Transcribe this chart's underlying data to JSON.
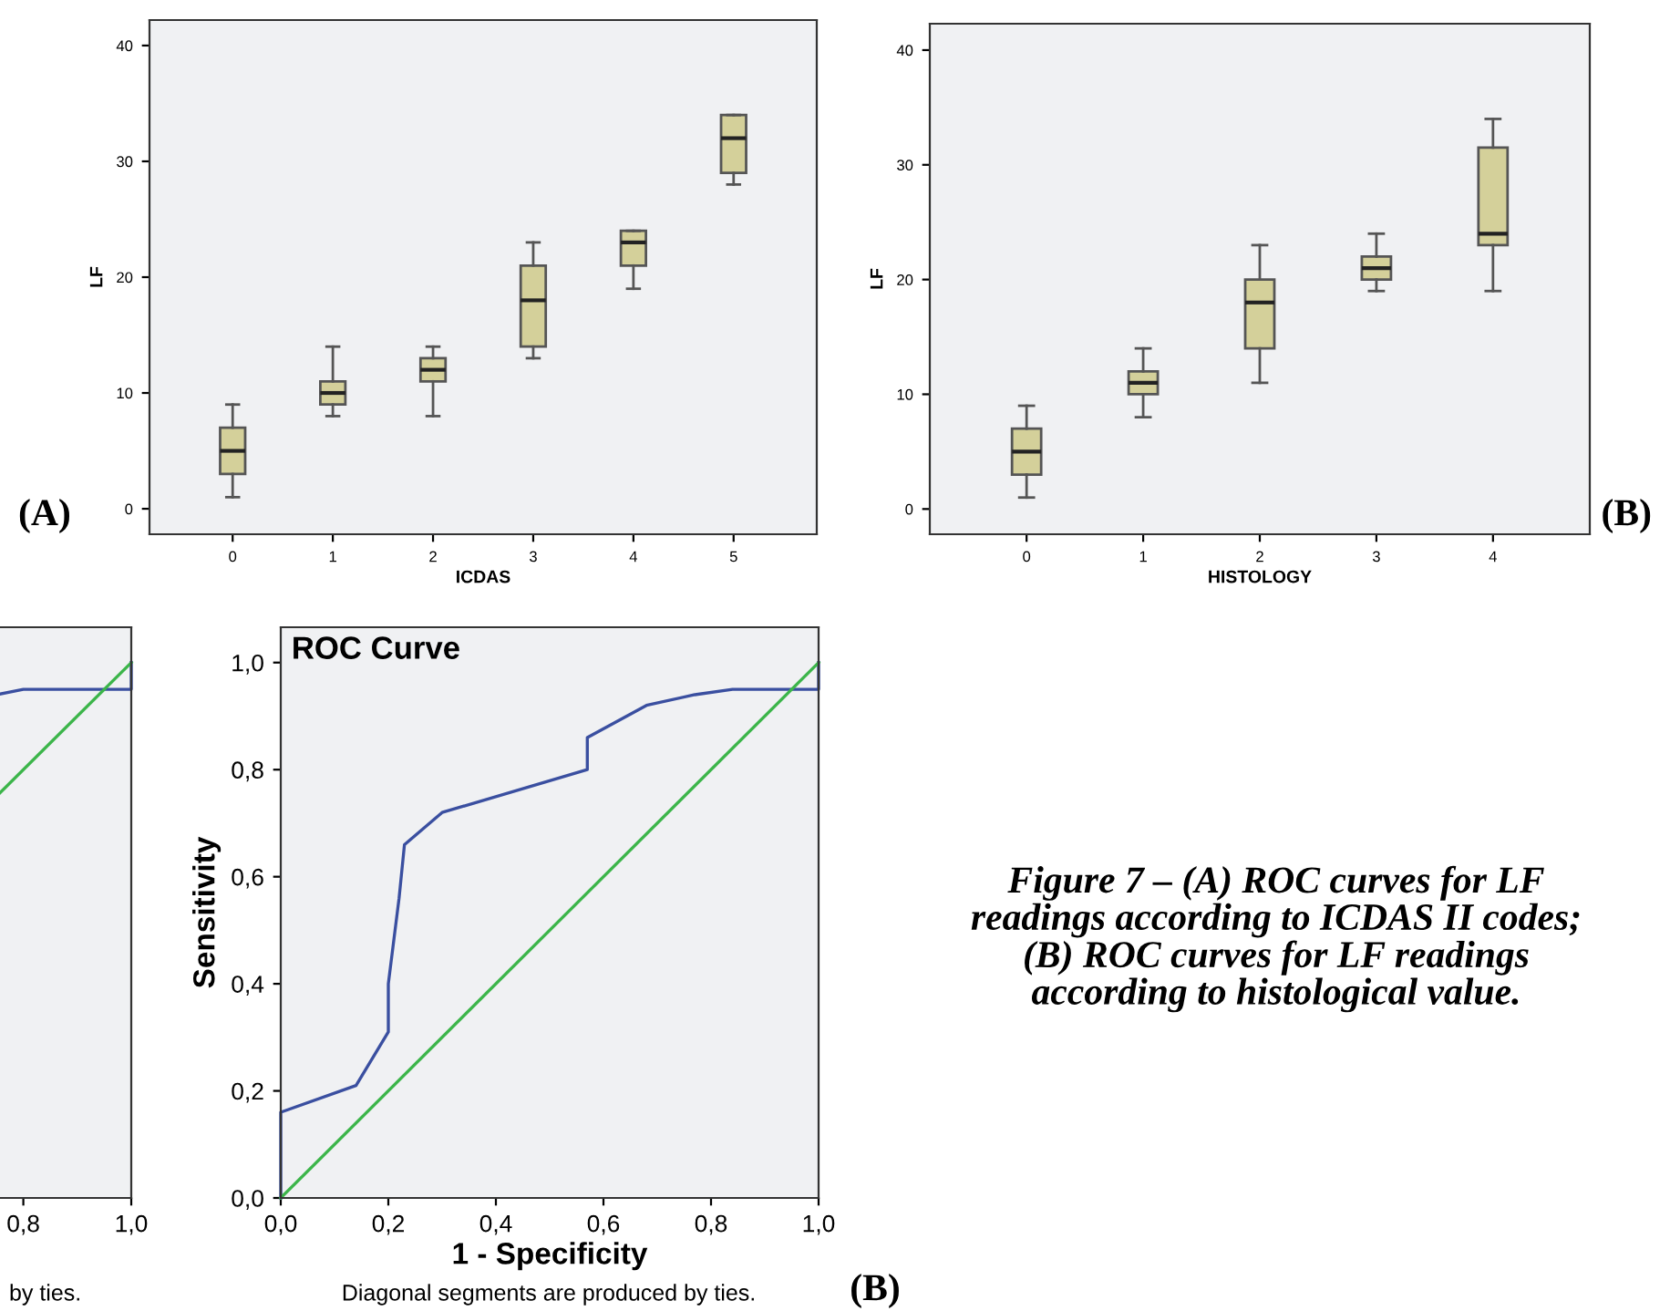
{
  "chart_data": [
    {
      "type": "box",
      "xlabel": "ICDAS",
      "ylabel": "LF",
      "categories": [
        "0",
        "1",
        "2",
        "3",
        "4",
        "5"
      ],
      "color": "#d4d09a",
      "ylim": [
        -2.2,
        42.2
      ],
      "yticks": [
        0,
        10,
        20,
        30,
        40
      ],
      "grid": false,
      "boxes": [
        {
          "low": 1,
          "q1": 3,
          "median": 5,
          "q3": 7,
          "high": 9
        },
        {
          "low": 8,
          "q1": 9,
          "median": 10,
          "q3": 11,
          "high": 14
        },
        {
          "low": 8,
          "q1": 11,
          "median": 12,
          "q3": 13,
          "high": 14
        },
        {
          "low": 13,
          "q1": 14,
          "median": 18,
          "q3": 21,
          "high": 23
        },
        {
          "low": 19,
          "q1": 21,
          "median": 23,
          "q3": 24,
          "high": 24
        },
        {
          "low": 28,
          "q1": 29,
          "median": 32,
          "q3": 34,
          "high": 34
        }
      ],
      "annotations": [
        "(A)"
      ]
    },
    {
      "type": "box",
      "xlabel": "HISTOLOGY",
      "ylabel": "LF",
      "categories": [
        "0",
        "1",
        "2",
        "3",
        "4"
      ],
      "color": "#d4d09a",
      "ylim": [
        -2.2,
        42.3
      ],
      "yticks": [
        0,
        10,
        20,
        30,
        40
      ],
      "grid": false,
      "boxes": [
        {
          "low": 1,
          "q1": 3,
          "median": 5,
          "q3": 7,
          "high": 9
        },
        {
          "low": 8,
          "q1": 10,
          "median": 11,
          "q3": 12,
          "high": 14
        },
        {
          "low": 11,
          "q1": 14,
          "median": 18,
          "q3": 20,
          "high": 23
        },
        {
          "low": 19,
          "q1": 20,
          "median": 21,
          "q3": 22,
          "high": 24
        },
        {
          "low": 19,
          "q1": 23,
          "median": 24,
          "q3": 31.5,
          "high": 34
        }
      ],
      "annotations": [
        "(B)"
      ]
    },
    {
      "type": "line",
      "xlim": [
        0.75,
        1.0
      ],
      "xticks": [
        {
          "value": 0.8,
          "label": "0,8"
        },
        {
          "value": 1.0,
          "label": "1,0"
        }
      ],
      "ylim": [
        0,
        1.066
      ],
      "tick_labels": "x",
      "grid": false,
      "marker": "none",
      "series": [
        {
          "color": "#3a4fa0",
          "x": [
            0.75,
            0.8,
            1.0,
            1.0
          ],
          "values": [
            0.94,
            0.95,
            0.95,
            1.0
          ]
        },
        {
          "color": "#3cb54a",
          "x": [
            0.75,
            1.0
          ],
          "values": [
            0.75,
            1.0
          ]
        }
      ],
      "annotations": [
        "by ties."
      ]
    },
    {
      "type": "line",
      "title": "ROC Curve",
      "xlabel": "1 - Specificity",
      "ylabel": "Sensitivity",
      "xlim": [
        0,
        1.0
      ],
      "ylim": [
        0,
        1.066
      ],
      "grid": false,
      "marker": "none",
      "xticks": [
        {
          "value": 0,
          "label": "0,0"
        },
        {
          "value": 0.2,
          "label": "0,2"
        },
        {
          "value": 0.4,
          "label": "0,4"
        },
        {
          "value": 0.6,
          "label": "0,6"
        },
        {
          "value": 0.8,
          "label": "0,8"
        },
        {
          "value": 1.0,
          "label": "1,0"
        }
      ],
      "yticks": [
        {
          "value": 0,
          "label": "0,0"
        },
        {
          "value": 0.2,
          "label": "0,2"
        },
        {
          "value": 0.4,
          "label": "0,4"
        },
        {
          "value": 0.6,
          "label": "0,6"
        },
        {
          "value": 0.8,
          "label": "0,8"
        },
        {
          "value": 1.0,
          "label": "1,0"
        }
      ],
      "series": [
        {
          "color": "#3a4fa0",
          "x": [
            0,
            0,
            0.14,
            0.2,
            0.2,
            0.22,
            0.23,
            0.3,
            0.57,
            0.57,
            0.68,
            0.77,
            0.84,
            1.0,
            1.0
          ],
          "values": [
            0,
            0.16,
            0.21,
            0.31,
            0.4,
            0.56,
            0.66,
            0.72,
            0.8,
            0.86,
            0.92,
            0.94,
            0.95,
            0.95,
            1.0
          ]
        },
        {
          "color": "#3cb54a",
          "x": [
            0,
            1.0
          ],
          "values": [
            0,
            1.0
          ]
        }
      ],
      "annotations": [
        "Diagonal segments are produced by ties.",
        "(B)",
        "Figure 7 – (A) ROC curves for LF\nreadings according to ICDAS II codes;\n(B) ROC curves for LF readings\naccording to histological value."
      ]
    }
  ]
}
